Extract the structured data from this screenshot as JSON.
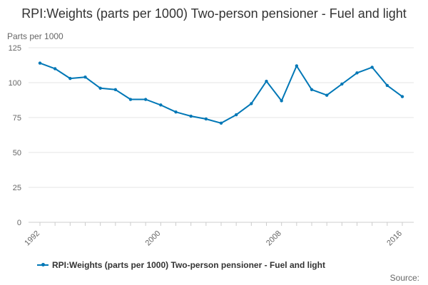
{
  "chart_data": {
    "type": "line",
    "title": "RPI:Weights (parts per 1000) Two-person pensioner - Fuel and light",
    "ylabel": "Parts per 1000",
    "xlabel": "",
    "ylim": [
      0,
      125
    ],
    "y_ticks": [
      0,
      25,
      50,
      75,
      100,
      125
    ],
    "x_tick_labels": [
      1992,
      2000,
      2008,
      2016
    ],
    "grid": true,
    "legend_position": "bottom",
    "source_label": "Source:",
    "color": "#0077b6",
    "series": [
      {
        "name": "RPI:Weights (parts per 1000) Two-person pensioner - Fuel and light",
        "x": [
          1992,
          1993,
          1994,
          1995,
          1996,
          1997,
          1998,
          1999,
          2000,
          2001,
          2002,
          2003,
          2004,
          2005,
          2006,
          2007,
          2008,
          2009,
          2010,
          2011,
          2012,
          2013,
          2014,
          2015,
          2016
        ],
        "y": [
          114,
          110,
          103,
          104,
          96,
          95,
          88,
          88,
          84,
          79,
          76,
          74,
          71,
          77,
          85,
          101,
          87,
          112,
          95,
          91,
          99,
          107,
          111,
          98,
          90
        ]
      }
    ]
  }
}
